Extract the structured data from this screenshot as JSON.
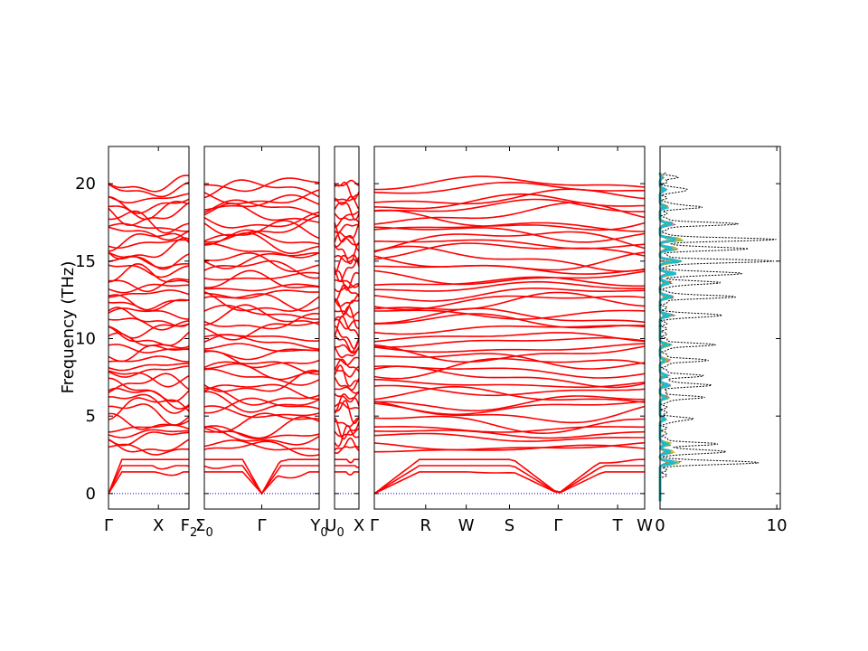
{
  "chart_data": {
    "type": "line",
    "ylabel": "Frequency (THz)",
    "ylim": [
      -1,
      22.4
    ],
    "yticks": [
      0,
      5,
      10,
      15,
      20
    ],
    "grid": false,
    "colors": {
      "bands": "#ff0000",
      "zero_line": "#0000cc",
      "dos_total": "#000000",
      "dos_partial": [
        "#1f77b4",
        "#ff7f0e",
        "#2ca02c",
        "#d62728",
        "#9467bd",
        "#8c564b",
        "#e377c2",
        "#7f7f7f",
        "#bcbd22",
        "#17becf"
      ]
    },
    "panels": [
      {
        "ticks": [
          {
            "label": "Γ",
            "sub": ""
          },
          {
            "label": "X",
            "sub": ""
          },
          {
            "label": "F",
            "sub": "2"
          }
        ],
        "tick_positions": [
          0,
          0.62,
          1.0
        ],
        "series": [
          {
            "name": "phonon bands",
            "seed": 11
          }
        ]
      },
      {
        "ticks": [
          {
            "label": "Σ",
            "sub": "0"
          },
          {
            "label": "Γ",
            "sub": ""
          },
          {
            "label": "Y",
            "sub": "0"
          }
        ],
        "tick_positions": [
          0,
          0.5,
          1.0
        ],
        "series": [
          {
            "name": "phonon bands",
            "seed": 23
          }
        ]
      },
      {
        "ticks": [
          {
            "label": "U",
            "sub": "0"
          },
          {
            "label": "X",
            "sub": ""
          }
        ],
        "tick_positions": [
          0,
          1.0
        ],
        "series": [
          {
            "name": "phonon bands",
            "seed": 37
          }
        ]
      },
      {
        "ticks": [
          {
            "label": "Γ",
            "sub": ""
          },
          {
            "label": "R",
            "sub": ""
          },
          {
            "label": "W",
            "sub": ""
          },
          {
            "label": "S",
            "sub": ""
          },
          {
            "label": "Γ",
            "sub": ""
          },
          {
            "label": "T",
            "sub": ""
          },
          {
            "label": "W",
            "sub": ""
          }
        ],
        "tick_positions": [
          0,
          0.19,
          0.34,
          0.5,
          0.68,
          0.9,
          1.0
        ],
        "series": [
          {
            "name": "phonon bands",
            "seed": 53
          }
        ]
      }
    ],
    "dos": {
      "xlim": [
        0,
        10.3
      ],
      "xticks": [
        0,
        10
      ],
      "total_peaks": [
        [
          2.0,
          8.4
        ],
        [
          2.7,
          5.6
        ],
        [
          3.2,
          4.4
        ],
        [
          4.8,
          2.5
        ],
        [
          6.2,
          3.3
        ],
        [
          7.0,
          4.0
        ],
        [
          7.6,
          3.2
        ],
        [
          8.6,
          3.6
        ],
        [
          9.6,
          4.2
        ],
        [
          11.5,
          5.2
        ],
        [
          12.7,
          6.0
        ],
        [
          13.6,
          4.8
        ],
        [
          14.2,
          7.0
        ],
        [
          15.0,
          9.2
        ],
        [
          15.8,
          7.2
        ],
        [
          16.4,
          9.4
        ],
        [
          17.4,
          6.2
        ],
        [
          18.5,
          3.2
        ],
        [
          19.6,
          2.2
        ],
        [
          20.4,
          1.0
        ]
      ]
    }
  }
}
